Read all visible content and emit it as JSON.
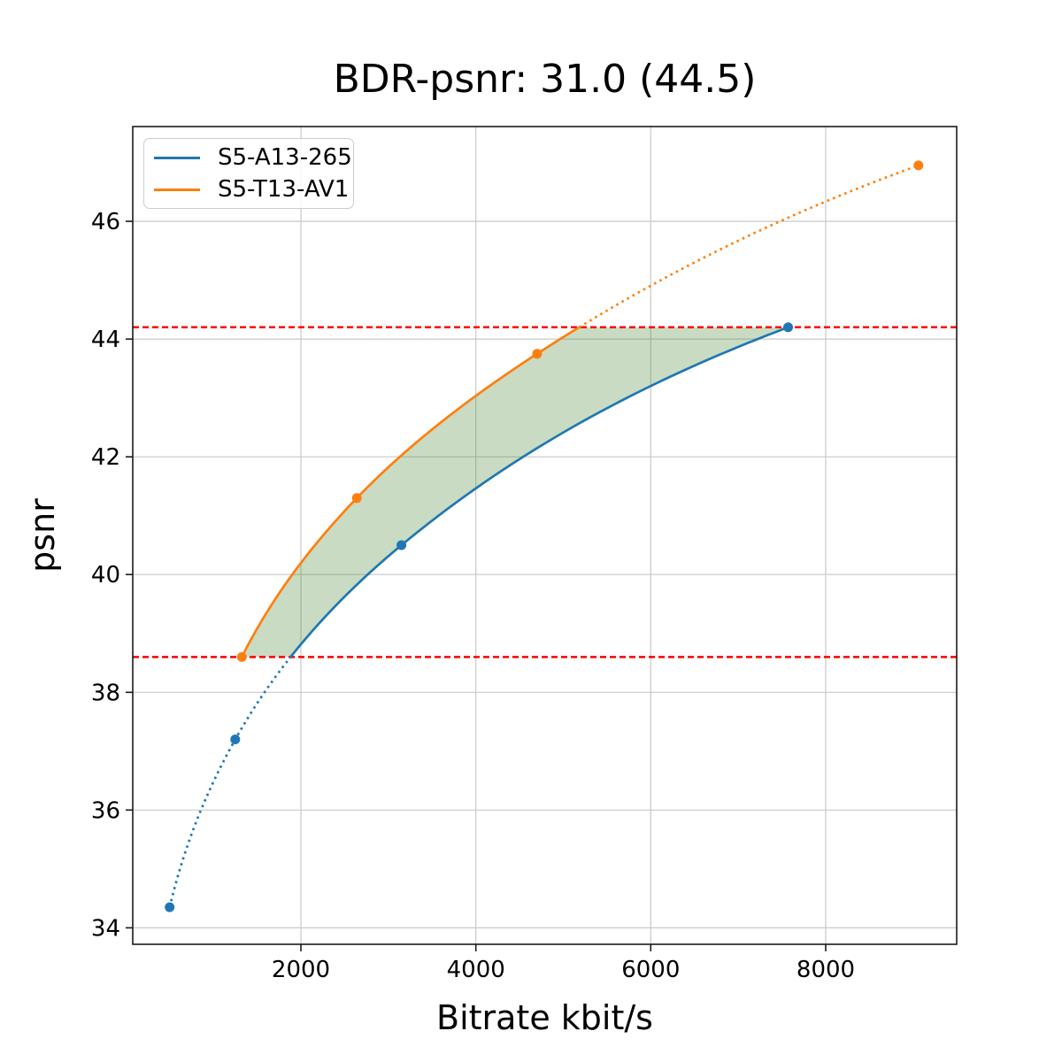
{
  "title": "BDR-psnr: 31.0 (44.5)",
  "chart_data": {
    "type": "line",
    "title": "BDR-psnr: 31.0 (44.5)",
    "xlabel": "Bitrate kbit/s",
    "ylabel": "psnr",
    "xlim": [
      78,
      9497
    ],
    "ylim": [
      33.72,
      47.61
    ],
    "xticks": [
      2000,
      4000,
      6000,
      8000
    ],
    "yticks": [
      34,
      36,
      38,
      40,
      42,
      44,
      46
    ],
    "grid": true,
    "legend_position": "upper left",
    "series": [
      {
        "name": "S5-A13-265",
        "color": "#1f77b4",
        "x": [
          500,
          1250,
          3150,
          7570
        ],
        "y": [
          34.35,
          37.2,
          40.5,
          44.2
        ]
      },
      {
        "name": "S5-T13-AV1",
        "color": "#ff7f0e",
        "x": [
          1325,
          2640,
          4700,
          9060
        ],
        "y": [
          38.6,
          41.3,
          43.75,
          46.95
        ]
      }
    ],
    "overlap_range": [
      38.6,
      44.2
    ],
    "hlines": [
      {
        "y": 38.6,
        "color": "#ff0000",
        "style": "dashed"
      },
      {
        "y": 44.2,
        "color": "#ff0000",
        "style": "dashed"
      }
    ],
    "shaded_region": {
      "between": "curves",
      "y_range": [
        38.6,
        44.2
      ],
      "color": "#3c7d23",
      "alpha": 0.28
    },
    "style": {
      "grid_color": "#c9c9c9",
      "spine_color": "#1a1a1a",
      "tick_label_color": "#000000"
    }
  }
}
